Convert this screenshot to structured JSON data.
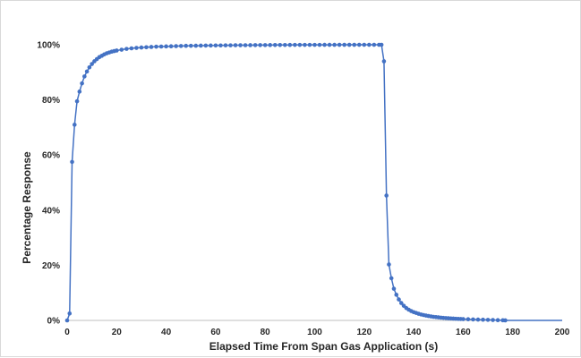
{
  "chart_data": {
    "type": "line",
    "title": "",
    "xlabel": "Elapsed Time From Span Gas Application (s)",
    "ylabel": "Percentage Response",
    "xlim": [
      0,
      200
    ],
    "ylim": [
      0,
      100
    ],
    "x_ticks": [
      0,
      20,
      40,
      60,
      80,
      100,
      120,
      140,
      160,
      180,
      200
    ],
    "y_ticks": [
      0,
      20,
      40,
      60,
      80,
      100
    ],
    "y_tick_format": "percent",
    "grid": false,
    "legend": "none",
    "series": [
      {
        "color": "#4472c4",
        "marker": "circle",
        "x": [
          0,
          1,
          2,
          3,
          4,
          5,
          6,
          7,
          8,
          9,
          10,
          11,
          12,
          13,
          14,
          15,
          16,
          17,
          18,
          19,
          20,
          22,
          24,
          26,
          28,
          30,
          32,
          34,
          36,
          38,
          40,
          42,
          44,
          46,
          48,
          50,
          52,
          54,
          56,
          58,
          60,
          62,
          64,
          66,
          68,
          70,
          72,
          74,
          76,
          78,
          80,
          82,
          84,
          86,
          88,
          90,
          92,
          94,
          96,
          98,
          100,
          102,
          104,
          106,
          108,
          110,
          112,
          114,
          116,
          118,
          120,
          122,
          124,
          126,
          127,
          128,
          129,
          130,
          131,
          132,
          133,
          134,
          135,
          136,
          137,
          138,
          139,
          140,
          141,
          142,
          143,
          144,
          145,
          146,
          147,
          148,
          149,
          150,
          151,
          152,
          153,
          154,
          155,
          156,
          157,
          158,
          159,
          160,
          162,
          164,
          166,
          168,
          170,
          172,
          174,
          176,
          177,
          200
        ],
        "y": [
          0,
          2.5,
          57.5,
          71,
          79.5,
          83,
          86,
          88.5,
          90.3,
          91.8,
          93,
          94,
          94.8,
          95.5,
          96,
          96.5,
          96.9,
          97.2,
          97.5,
          97.7,
          97.9,
          98.2,
          98.5,
          98.7,
          98.85,
          99,
          99.1,
          99.2,
          99.3,
          99.35,
          99.4,
          99.45,
          99.5,
          99.55,
          99.6,
          99.62,
          99.65,
          99.68,
          99.7,
          99.72,
          99.74,
          99.76,
          99.78,
          99.8,
          99.82,
          99.83,
          99.84,
          99.85,
          99.86,
          99.87,
          99.88,
          99.89,
          99.9,
          99.91,
          99.92,
          99.93,
          99.94,
          99.95,
          99.95,
          99.96,
          99.96,
          99.96,
          99.97,
          99.97,
          99.97,
          99.98,
          99.98,
          99.98,
          99.98,
          99.99,
          99.99,
          99.99,
          99.99,
          99.99,
          99.99,
          94,
          45.3,
          20.3,
          15.3,
          11.5,
          9.3,
          7.6,
          6.3,
          5.3,
          4.5,
          3.9,
          3.4,
          3.0,
          2.7,
          2.4,
          2.15,
          1.95,
          1.75,
          1.6,
          1.45,
          1.3,
          1.2,
          1.1,
          1.0,
          0.92,
          0.85,
          0.78,
          0.72,
          0.66,
          0.61,
          0.56,
          0.52,
          0.48,
          0.42,
          0.36,
          0.3,
          0.25,
          0.2,
          0.15,
          0.1,
          0.05,
          0.02,
          0
        ]
      }
    ]
  }
}
